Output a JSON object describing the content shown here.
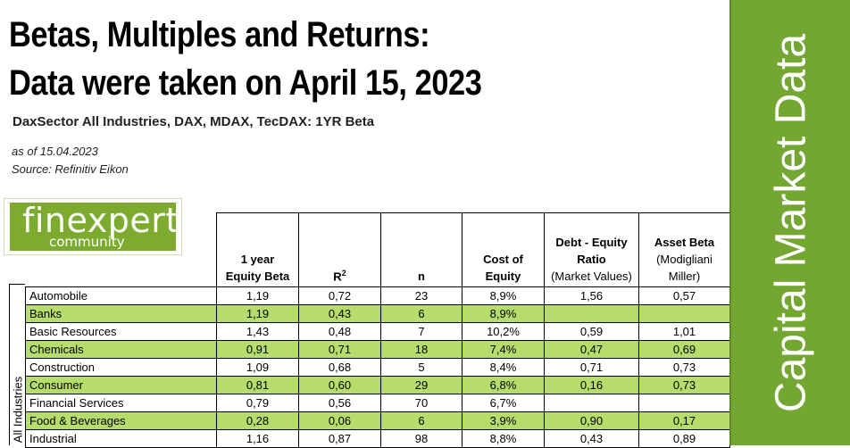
{
  "header": {
    "title_line1": "Betas, Multiples and Returns:",
    "title_line2": "Data were taken on April 15, 2023",
    "subtitle": "DaxSector All Industries, DAX, MDAX, TecDAX: 1YR Beta",
    "as_of": "as of 15.04.2023",
    "source": "Source: Refinitiv Eikon"
  },
  "logo": {
    "word": "finexpert",
    "sub": "community"
  },
  "banner": {
    "text": "Capital Market Data"
  },
  "side_label": "All Industries",
  "table": {
    "headers": {
      "beta_l1": "1 year",
      "beta_l2": "Equity Beta",
      "r2": "R",
      "r2_sup": "2",
      "n": "n",
      "coe_l1": "Cost of",
      "coe_l2": "Equity",
      "de_l1": "Debt - Equity",
      "de_l2": "Ratio",
      "de_l3": "(Market Values)",
      "ab_l1": "Asset Beta",
      "ab_l2": "(Modigliani",
      "ab_l3": "Miller)"
    },
    "rows": [
      {
        "name": "Automobile",
        "beta": "1,19",
        "r2": "0,72",
        "n": "23",
        "coe": "8,9%",
        "de": "1,56",
        "ab": "0,57"
      },
      {
        "name": "Banks",
        "beta": "1,19",
        "r2": "0,43",
        "n": "6",
        "coe": "8,9%",
        "de": "",
        "ab": ""
      },
      {
        "name": "Basic Resources",
        "beta": "1,43",
        "r2": "0,48",
        "n": "7",
        "coe": "10,2%",
        "de": "0,59",
        "ab": "1,01"
      },
      {
        "name": "Chemicals",
        "beta": "0,91",
        "r2": "0,71",
        "n": "18",
        "coe": "7,4%",
        "de": "0,47",
        "ab": "0,69"
      },
      {
        "name": "Construction",
        "beta": "1,09",
        "r2": "0,68",
        "n": "5",
        "coe": "8,4%",
        "de": "0,71",
        "ab": "0,73"
      },
      {
        "name": "Consumer",
        "beta": "0,81",
        "r2": "0,60",
        "n": "29",
        "coe": "6,8%",
        "de": "0,16",
        "ab": "0,73"
      },
      {
        "name": "Financial Services",
        "beta": "0,79",
        "r2": "0,56",
        "n": "70",
        "coe": "6,7%",
        "de": "",
        "ab": ""
      },
      {
        "name": "Food & Beverages",
        "beta": "0,28",
        "r2": "0,06",
        "n": "6",
        "coe": "3,9%",
        "de": "0,90",
        "ab": "0,17"
      },
      {
        "name": "Industrial",
        "beta": "1,16",
        "r2": "0,87",
        "n": "98",
        "coe": "8,8%",
        "de": "0,43",
        "ab": "0,89"
      }
    ]
  },
  "colors": {
    "banner_green": "#74a632",
    "row_green": "#b6dc6c",
    "logo_green": "#7dab2f"
  }
}
